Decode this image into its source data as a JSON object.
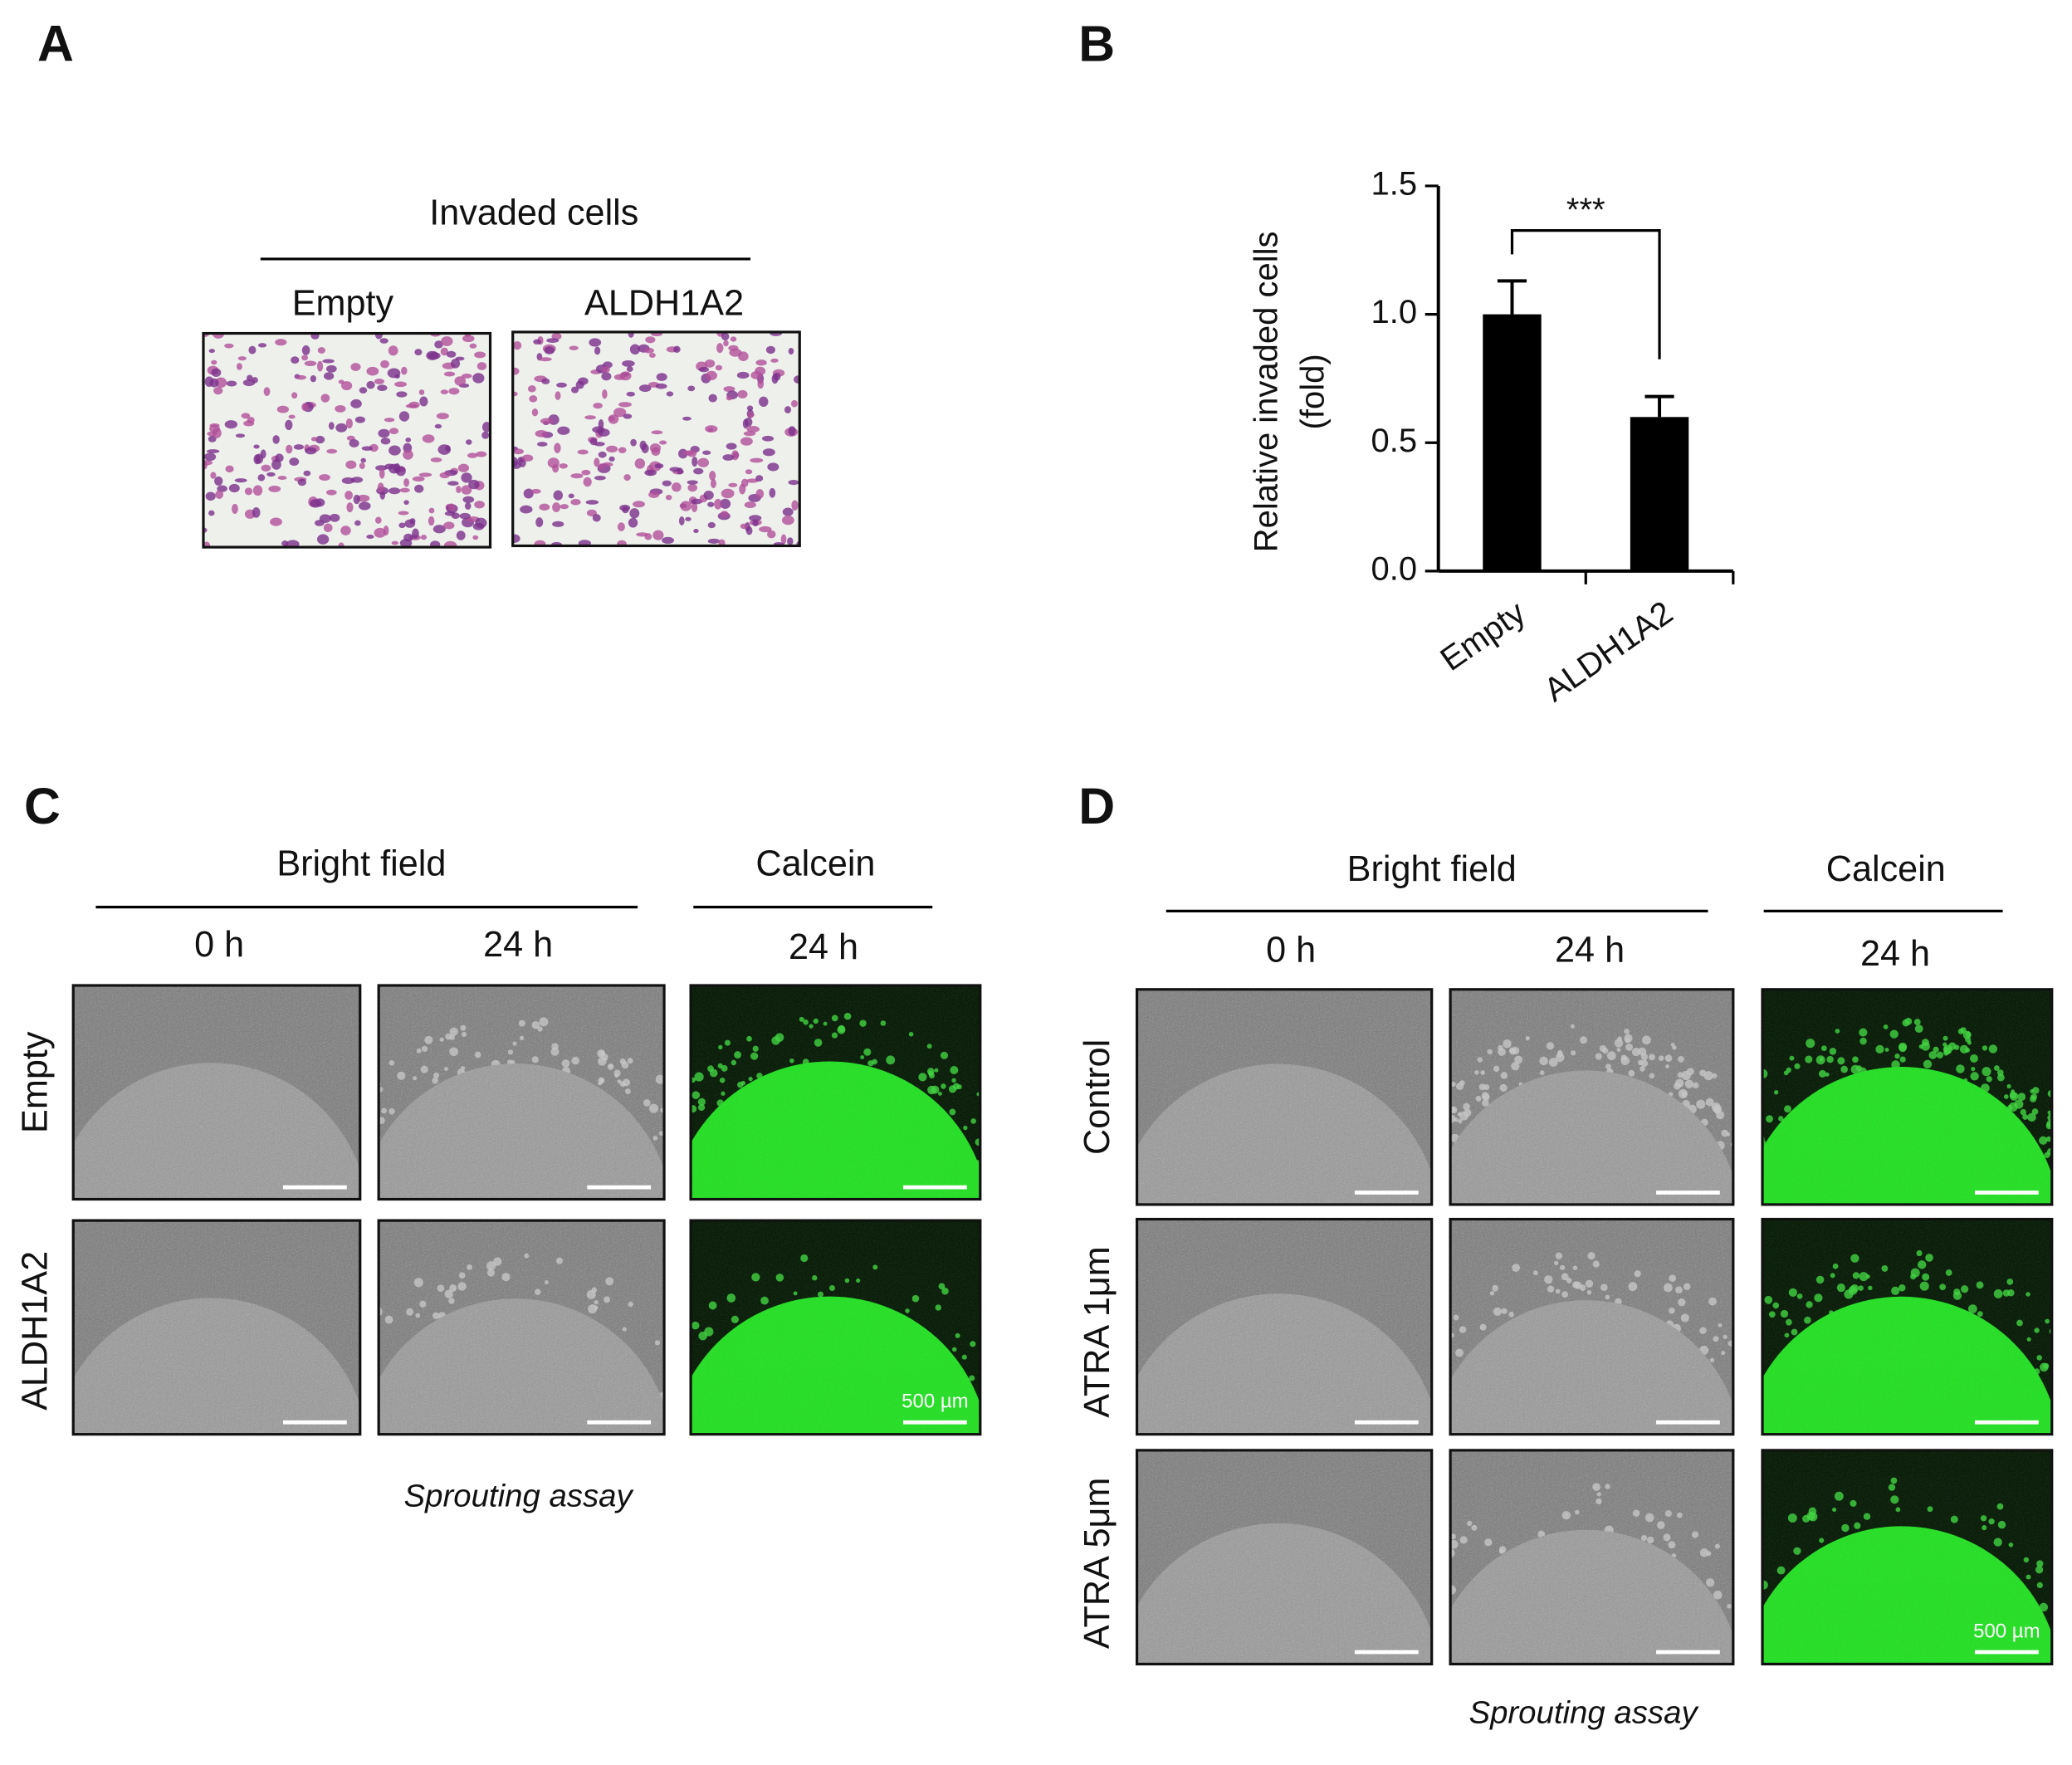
{
  "panel_a": {
    "label": "A",
    "title": "Invaded cells",
    "columns": [
      "Empty",
      "ALDH1A2"
    ]
  },
  "panel_b": {
    "label": "B"
  },
  "chart_data": {
    "type": "bar",
    "ylabel": [
      "Relative invaded cells",
      "(fold)"
    ],
    "categories": [
      "Empty",
      "ALDH1A2"
    ],
    "values": [
      1.0,
      0.6
    ],
    "errors": [
      0.13,
      0.08
    ],
    "color": "#000000",
    "ylim": [
      0,
      1.5
    ],
    "yticks": [
      {
        "value": 0,
        "label": "0.0"
      },
      0.5,
      {
        "value": 1,
        "label": "1.0"
      },
      1.5
    ],
    "annotation": "***"
  },
  "panel_c": {
    "label": "C",
    "groups": [
      "Bright field",
      "Calcein"
    ],
    "times": [
      "0 h",
      "24 h",
      "24 h"
    ],
    "rows": [
      "Empty",
      "ALDH1A2"
    ],
    "scale_bar": "500 µm",
    "caption": "Sprouting assay"
  },
  "panel_d": {
    "label": "D",
    "groups": [
      "Bright field",
      "Calcein"
    ],
    "times": [
      "0 h",
      "24 h",
      "24 h"
    ],
    "rows": [
      "Control",
      "ATRA 1μm",
      "ATRA 5μm"
    ],
    "scale_bar": "500 µm",
    "caption": "Sprouting assay"
  }
}
